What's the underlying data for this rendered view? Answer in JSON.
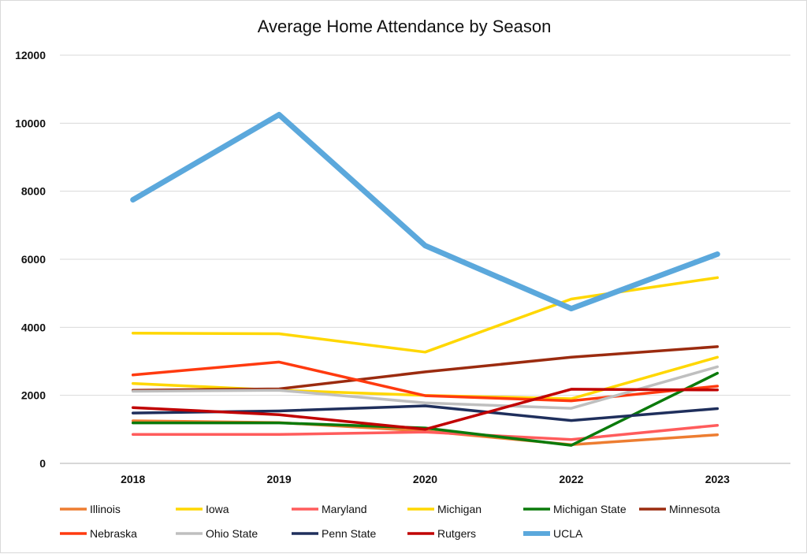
{
  "chart_data": {
    "type": "line",
    "title": "Average Home Attendance by Season",
    "xlabel": "",
    "ylabel": "",
    "categories": [
      "2018",
      "2019",
      "2020",
      "2022",
      "2023"
    ],
    "ylim": [
      0,
      12000
    ],
    "yticks": [
      0,
      2000,
      4000,
      6000,
      8000,
      10000,
      12000
    ],
    "grid": true,
    "legend_position": "bottom",
    "series": [
      {
        "name": "Illinois",
        "color": "#ED7D31",
        "values": [
          1250,
          1200,
          950,
          550,
          840
        ]
      },
      {
        "name": "Iowa",
        "color": "#FFD700",
        "values": [
          2350,
          2150,
          2000,
          1900,
          3120
        ]
      },
      {
        "name": "Maryland",
        "color": "#FF5C5C",
        "values": [
          850,
          850,
          920,
          700,
          1120
        ]
      },
      {
        "name": "Michigan",
        "color": "#FFD700",
        "values": [
          3830,
          3810,
          3270,
          4830,
          5460
        ]
      },
      {
        "name": "Michigan State",
        "color": "#0B7A0B",
        "values": [
          1190,
          1190,
          1040,
          530,
          2650
        ]
      },
      {
        "name": "Minnesota",
        "color": "#9B2B0F",
        "values": [
          2150,
          2190,
          2690,
          3120,
          3430
        ]
      },
      {
        "name": "Nebraska",
        "color": "#FF3A0F",
        "values": [
          2600,
          2980,
          1990,
          1840,
          2270
        ]
      },
      {
        "name": "Ohio State",
        "color": "#BFBFBF",
        "values": [
          2120,
          2150,
          1780,
          1620,
          2840
        ]
      },
      {
        "name": "Penn State",
        "color": "#1F2F5C",
        "values": [
          1480,
          1540,
          1690,
          1260,
          1610
        ]
      },
      {
        "name": "Rutgers",
        "color": "#C00000",
        "values": [
          1640,
          1430,
          1000,
          2180,
          2160
        ]
      },
      {
        "name": "UCLA",
        "color": "#5BA8DC",
        "values": [
          7750,
          10250,
          6400,
          4550,
          6150
        ]
      }
    ]
  }
}
